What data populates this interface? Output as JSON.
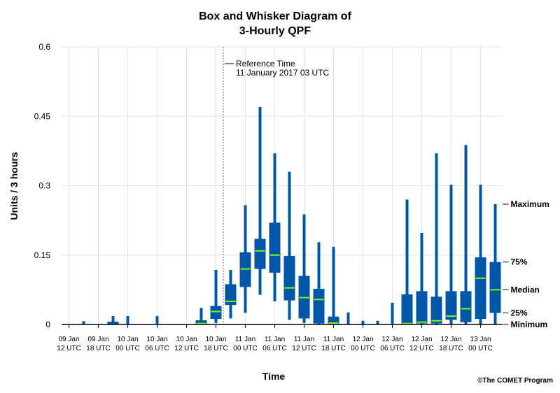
{
  "chart_data": {
    "type": "boxplot",
    "title_line1": "Box and Whisker Diagram of",
    "title_line2": "3-Hourly QPF",
    "xlabel": "Time",
    "ylabel": "Units / 3 hours",
    "ylim": [
      0,
      0.6
    ],
    "yticks": [
      "0",
      "0.15",
      "0.3",
      "0.45",
      "0.6"
    ],
    "grid": true,
    "x_tick_labels": [
      [
        "09 Jan",
        "12 UTC"
      ],
      [
        "09 Jan",
        "18 UTC"
      ],
      [
        "10 Jan",
        "00 UTC"
      ],
      [
        "10 Jan",
        "06 UTC"
      ],
      [
        "10 Jan",
        "12 UTC"
      ],
      [
        "10 Jan",
        "18 UTC"
      ],
      [
        "11 Jan",
        "00 UTC"
      ],
      [
        "11 Jan",
        "06 UTC"
      ],
      [
        "11 Jan",
        "12 UTC"
      ],
      [
        "11 Jan",
        "18 UTC"
      ],
      [
        "12 Jan",
        "00 UTC"
      ],
      [
        "12 Jan",
        "06 UTC"
      ],
      [
        "12 Jan",
        "12 UTC"
      ],
      [
        "12 Jan",
        "18 UTC"
      ],
      [
        "13 Jan",
        "00 UTC"
      ]
    ],
    "reference": {
      "label_line1": "Reference Time",
      "label_line2": "11 January 2017 03 UTC",
      "after_box_index": 10
    },
    "legend": {
      "maximum": "Maximum",
      "p75": "75%",
      "median": "Median",
      "p25": "25%",
      "minimum": "Minimum"
    },
    "boxes": [
      {
        "min": 0,
        "q1": 0,
        "median": 0,
        "q3": 0,
        "max": 0
      },
      {
        "min": 0,
        "q1": 0,
        "median": 0,
        "q3": 0,
        "max": 0.007
      },
      {
        "min": 0,
        "q1": 0,
        "median": 0,
        "q3": 0,
        "max": 0
      },
      {
        "min": 0,
        "q1": 0,
        "median": 0,
        "q3": 0.006,
        "max": 0.018
      },
      {
        "min": 0,
        "q1": 0,
        "median": 0,
        "q3": 0,
        "max": 0.018
      },
      {
        "min": 0,
        "q1": 0,
        "median": 0,
        "q3": 0,
        "max": 0
      },
      {
        "min": 0,
        "q1": 0,
        "median": 0,
        "q3": 0,
        "max": 0.018
      },
      {
        "min": 0,
        "q1": 0,
        "median": 0,
        "q3": 0,
        "max": 0
      },
      {
        "min": 0,
        "q1": 0,
        "median": 0,
        "q3": 0,
        "max": 0
      },
      {
        "min": 0,
        "q1": 0,
        "median": 0.002,
        "q3": 0.009,
        "max": 0.036
      },
      {
        "min": 0.003,
        "q1": 0.012,
        "median": 0.028,
        "q3": 0.04,
        "max": 0.118
      },
      {
        "min": 0.013,
        "q1": 0.042,
        "median": 0.05,
        "q3": 0.087,
        "max": 0.118
      },
      {
        "min": 0.025,
        "q1": 0.081,
        "median": 0.12,
        "q3": 0.156,
        "max": 0.258
      },
      {
        "min": 0.064,
        "q1": 0.12,
        "median": 0.159,
        "q3": 0.185,
        "max": 0.47
      },
      {
        "min": 0.05,
        "q1": 0.112,
        "median": 0.15,
        "q3": 0.22,
        "max": 0.37
      },
      {
        "min": 0.01,
        "q1": 0.052,
        "median": 0.079,
        "q3": 0.148,
        "max": 0.33
      },
      {
        "min": 0.003,
        "q1": 0.013,
        "median": 0.058,
        "q3": 0.105,
        "max": 0.238
      },
      {
        "min": 0,
        "q1": 0.002,
        "median": 0.054,
        "q3": 0.077,
        "max": 0.178
      },
      {
        "min": 0,
        "q1": 0,
        "median": 0.003,
        "q3": 0.017,
        "max": 0.168
      },
      {
        "min": 0,
        "q1": 0,
        "median": 0,
        "q3": 0,
        "max": 0.026
      },
      {
        "min": 0,
        "q1": 0,
        "median": 0,
        "q3": 0,
        "max": 0.008
      },
      {
        "min": 0,
        "q1": 0,
        "median": 0,
        "q3": 0,
        "max": 0.008
      },
      {
        "min": 0,
        "q1": 0,
        "median": 0,
        "q3": 0,
        "max": 0.047
      },
      {
        "min": 0,
        "q1": 0,
        "median": 0.002,
        "q3": 0.065,
        "max": 0.27
      },
      {
        "min": 0,
        "q1": 0.002,
        "median": 0.005,
        "q3": 0.072,
        "max": 0.198
      },
      {
        "min": 0,
        "q1": 0.002,
        "median": 0.008,
        "q3": 0.06,
        "max": 0.37
      },
      {
        "min": 0,
        "q1": 0.01,
        "median": 0.018,
        "q3": 0.072,
        "max": 0.302
      },
      {
        "min": 0,
        "q1": 0.005,
        "median": 0.034,
        "q3": 0.072,
        "max": 0.388
      },
      {
        "min": 0,
        "q1": 0.012,
        "median": 0.1,
        "q3": 0.145,
        "max": 0.302
      },
      {
        "min": 0,
        "q1": 0.025,
        "median": 0.075,
        "q3": 0.135,
        "max": 0.26
      }
    ],
    "colors": {
      "box": "#0057A8",
      "median": "#7CFC00",
      "grid": "#E4E4E4",
      "reference": "#E05050"
    }
  },
  "copyright": "©The COMET Program"
}
